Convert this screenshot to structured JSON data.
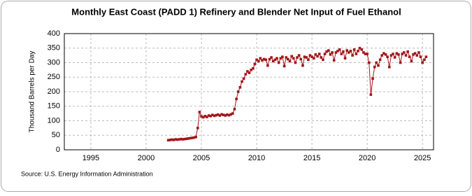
{
  "chart_data": {
    "type": "line",
    "title": "Monthly East Coast (PADD 1) Refinery and Blender Net Input of Fuel Ethanol",
    "y_label": "Thousand Barrels per Day",
    "source": "Source: U.S. Energy Information Administration",
    "x": [
      2002.0,
      2002.17,
      2002.33,
      2002.5,
      2002.67,
      2002.83,
      2003.0,
      2003.17,
      2003.33,
      2003.5,
      2003.67,
      2003.83,
      2004.0,
      2004.17,
      2004.33,
      2004.5,
      2004.67,
      2004.83,
      2005.0,
      2005.17,
      2005.33,
      2005.5,
      2005.67,
      2005.83,
      2006.0,
      2006.17,
      2006.33,
      2006.5,
      2006.67,
      2006.83,
      2007.0,
      2007.17,
      2007.33,
      2007.5,
      2007.67,
      2007.83,
      2008.0,
      2008.17,
      2008.33,
      2008.5,
      2008.67,
      2008.83,
      2009.0,
      2009.17,
      2009.33,
      2009.5,
      2009.67,
      2009.83,
      2010.0,
      2010.17,
      2010.33,
      2010.5,
      2010.67,
      2010.83,
      2011.0,
      2011.17,
      2011.33,
      2011.5,
      2011.67,
      2011.83,
      2012.0,
      2012.17,
      2012.33,
      2012.5,
      2012.67,
      2012.83,
      2013.0,
      2013.17,
      2013.33,
      2013.5,
      2013.67,
      2013.83,
      2014.0,
      2014.17,
      2014.33,
      2014.5,
      2014.67,
      2014.83,
      2015.0,
      2015.17,
      2015.33,
      2015.5,
      2015.67,
      2015.83,
      2016.0,
      2016.17,
      2016.33,
      2016.5,
      2016.67,
      2016.83,
      2017.0,
      2017.17,
      2017.33,
      2017.5,
      2017.67,
      2017.83,
      2018.0,
      2018.17,
      2018.33,
      2018.5,
      2018.67,
      2018.83,
      2019.0,
      2019.17,
      2019.33,
      2019.5,
      2019.67,
      2019.83,
      2020.0,
      2020.17,
      2020.33,
      2020.5,
      2020.67,
      2020.83,
      2021.0,
      2021.17,
      2021.33,
      2021.5,
      2021.67,
      2021.83,
      2022.0,
      2022.17,
      2022.33,
      2022.5,
      2022.67,
      2022.83,
      2023.0,
      2023.17,
      2023.33,
      2023.5,
      2023.67,
      2023.83,
      2024.0,
      2024.17,
      2024.33,
      2024.5,
      2024.67,
      2024.83,
      2025.0,
      2025.17,
      2025.33
    ],
    "series": [
      {
        "name": "East Coast (PADD 1)",
        "color": "#a3161b",
        "values": [
          33,
          34,
          35,
          34,
          36,
          35,
          36,
          37,
          36,
          37,
          38,
          39,
          40,
          41,
          42,
          44,
          75,
          130,
          115,
          112,
          116,
          113,
          118,
          116,
          120,
          117,
          119,
          121,
          118,
          122,
          120,
          118,
          121,
          119,
          122,
          125,
          140,
          175,
          200,
          215,
          235,
          245,
          260,
          270,
          265,
          275,
          280,
          295,
          310,
          305,
          315,
          308,
          312,
          310,
          290,
          312,
          318,
          305,
          310,
          315,
          300,
          315,
          320,
          288,
          318,
          312,
          305,
          322,
          315,
          300,
          318,
          325,
          312,
          290,
          320,
          318,
          310,
          325,
          320,
          315,
          328,
          322,
          330,
          318,
          310,
          330,
          338,
          342,
          328,
          335,
          308,
          335,
          340,
          345,
          330,
          338,
          315,
          342,
          335,
          340,
          325,
          345,
          330,
          340,
          350,
          345,
          335,
          330,
          330,
          300,
          190,
          245,
          285,
          300,
          290,
          310,
          325,
          332,
          328,
          320,
          285,
          325,
          330,
          318,
          332,
          328,
          300,
          330,
          335,
          325,
          338,
          320,
          305,
          328,
          332,
          325,
          335,
          320,
          300,
          310,
          320
        ]
      }
    ],
    "xlim": [
      1992.6,
      2026
    ],
    "xticks": [
      1995,
      2000,
      2005,
      2010,
      2015,
      2020,
      2025
    ],
    "ylim": [
      0,
      400
    ],
    "yticks": [
      0,
      50,
      100,
      150,
      200,
      250,
      300,
      350,
      400
    ],
    "grid": true
  }
}
